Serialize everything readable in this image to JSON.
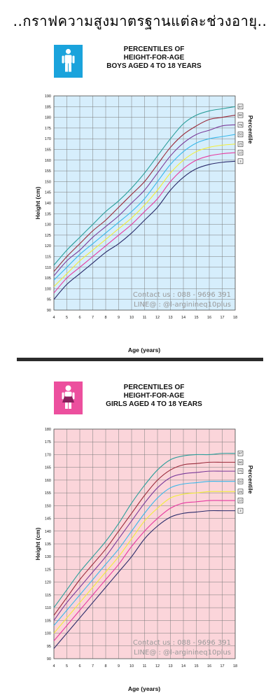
{
  "page": {
    "title": "..กราฟความสูงมาตรฐานแต่ละช่วงอายุ.."
  },
  "colors": {
    "boys_bg": "#d6eefc",
    "boys_icon_bg": "#1aa3dc",
    "girls_bg": "#fbd5da",
    "girls_icon_bg": "#ec4f9e",
    "grid": "#7a7a7a",
    "p97": "#2a9e9a",
    "p90": "#9a2a3a",
    "p75": "#7a3a9a",
    "p50": "#38b8ea",
    "p25": "#f2ee3a",
    "p10": "#e63aa0",
    "p3": "#2a2a6a"
  },
  "boys": {
    "icon": "boy-icon",
    "contact_line1": "Contact us : 088 - 9696 391",
    "contact_line2": "LINE@ : @l-arginineq10plus",
    "percentile_labels": [
      "97",
      "90",
      "75",
      "50",
      "25",
      "10",
      "3"
    ],
    "chart_data": {
      "type": "line",
      "title": [
        "PERCENTILES OF",
        "HEIGHT-FOR-AGE",
        "BOYS AGED 4 TO 18 YEARS"
      ],
      "xlabel": "Age (years)",
      "ylabel": "Height (cm)",
      "right_label": "Percentile",
      "xlim": [
        4,
        18
      ],
      "ylim": [
        90,
        190
      ],
      "x_ticks": [
        4,
        5,
        6,
        7,
        8,
        9,
        10,
        11,
        12,
        13,
        14,
        15,
        16,
        17,
        18
      ],
      "y_ticks": [
        90,
        95,
        100,
        105,
        110,
        115,
        120,
        125,
        130,
        135,
        140,
        145,
        150,
        155,
        160,
        165,
        170,
        175,
        180,
        185,
        190
      ],
      "grid": true,
      "x": [
        4,
        5,
        6,
        7,
        8,
        9,
        10,
        11,
        12,
        13,
        14,
        15,
        16,
        17,
        18
      ],
      "series": [
        {
          "name": "97",
          "values": [
            111,
            118,
            124,
            130,
            136,
            141,
            147,
            154,
            162,
            170,
            177,
            181,
            183,
            184,
            185
          ]
        },
        {
          "name": "90",
          "values": [
            108,
            115,
            121,
            127,
            132,
            138,
            144,
            150,
            158,
            166,
            172,
            176,
            179,
            180,
            181
          ]
        },
        {
          "name": "75",
          "values": [
            106,
            113,
            118,
            124,
            129,
            134,
            140,
            146,
            154,
            162,
            168,
            172,
            174,
            176,
            176.5
          ]
        },
        {
          "name": "50",
          "values": [
            104,
            110,
            116,
            121,
            126,
            131,
            136,
            142,
            150,
            158,
            164,
            168,
            170,
            171,
            172
          ]
        },
        {
          "name": "25",
          "values": [
            101,
            107,
            113,
            118,
            123,
            128,
            133,
            139,
            146,
            154,
            160,
            164,
            166,
            167,
            167.5
          ]
        },
        {
          "name": "10",
          "values": [
            98,
            105,
            110,
            115,
            120,
            125,
            130,
            136,
            142,
            150,
            156,
            160,
            162,
            163,
            163.5
          ]
        },
        {
          "name": "3",
          "values": [
            95,
            102,
            107,
            112,
            117,
            121,
            126,
            132,
            138,
            146,
            152,
            156,
            158,
            159,
            159.5
          ]
        }
      ]
    }
  },
  "girls": {
    "icon": "girl-icon",
    "contact_line1": "Contact us : 088 - 9696 391",
    "contact_line2": "LINE@ : @l-arginineq10plus",
    "percentile_labels": [
      "97",
      "90",
      "75",
      "50",
      "25",
      "10",
      "3"
    ],
    "chart_data": {
      "type": "line",
      "title": [
        "PERCENTILES OF",
        "HEIGHT-FOR-AGE",
        "GIRLS AGED 4 TO 18 YEARS"
      ],
      "xlabel": "Age (years)",
      "ylabel": "Height (cm)",
      "right_label": "Percentile",
      "xlim": [
        4,
        18
      ],
      "ylim": [
        90,
        180
      ],
      "x_ticks": [
        4,
        5,
        6,
        7,
        8,
        9,
        10,
        11,
        12,
        13,
        14,
        15,
        16,
        17,
        18
      ],
      "y_ticks": [
        90,
        95,
        100,
        105,
        110,
        115,
        120,
        125,
        130,
        135,
        140,
        145,
        150,
        155,
        160,
        165,
        170,
        175,
        180
      ],
      "grid": true,
      "x": [
        4,
        5,
        6,
        7,
        8,
        9,
        10,
        11,
        12,
        13,
        14,
        15,
        16,
        17,
        18
      ],
      "series": [
        {
          "name": "97",
          "values": [
            110,
            117,
            124,
            130,
            136,
            143,
            151,
            158,
            164,
            168,
            169.5,
            170,
            170,
            170.5,
            170.5
          ]
        },
        {
          "name": "90",
          "values": [
            107,
            114,
            121,
            127,
            133,
            140,
            147,
            154,
            160,
            164,
            166,
            166.5,
            167,
            167,
            167
          ]
        },
        {
          "name": "75",
          "values": [
            105,
            112,
            118,
            124,
            130,
            137,
            144,
            151,
            157,
            161,
            162.5,
            163,
            163.5,
            163.5,
            163.5
          ]
        },
        {
          "name": "50",
          "values": [
            103,
            109,
            115,
            121,
            127,
            133,
            140,
            147,
            153,
            157,
            158.5,
            159,
            159.5,
            159.5,
            159.5
          ]
        },
        {
          "name": "25",
          "values": [
            100,
            106,
            112,
            118,
            124,
            130,
            137,
            144,
            149,
            153,
            154.5,
            155,
            155.5,
            155.5,
            155.5
          ]
        },
        {
          "name": "10",
          "values": [
            97,
            103,
            109,
            115,
            121,
            127,
            134,
            140,
            145,
            149,
            151,
            151.5,
            152,
            152,
            152
          ]
        },
        {
          "name": "3",
          "values": [
            94,
            100,
            106,
            112,
            118,
            124,
            130,
            137,
            142,
            145.5,
            147,
            147.5,
            148,
            148,
            148
          ]
        }
      ]
    }
  }
}
